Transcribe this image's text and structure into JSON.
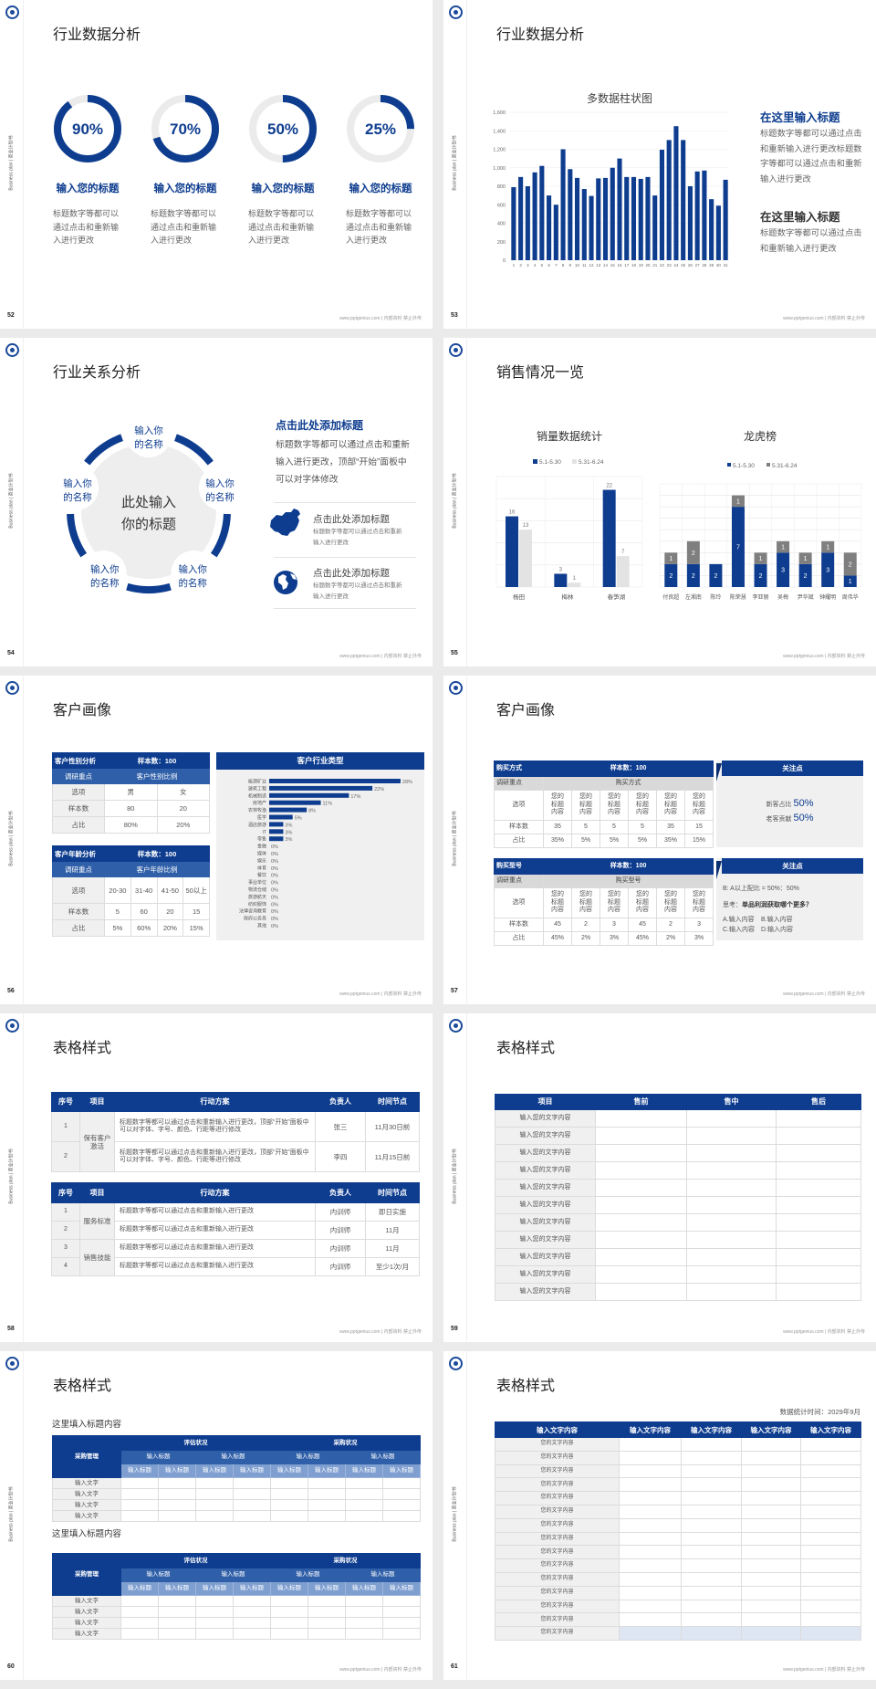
{
  "common": {
    "sidebar_text": "Business plan | 商业计划书",
    "footer": "www.pptgenius.com | 内部资料 禁止外传"
  },
  "colors": {
    "primary": "#0e3d8f",
    "secondary": "#e3e3e3",
    "gray": "#7f7f7f",
    "track": "#ebebeb"
  },
  "slides": [
    {
      "page": "52",
      "title": "行业数据分析",
      "rings": [
        {
          "value": 90,
          "label": "90%",
          "heading": "输入您的标题",
          "body": "标题数字等都可以通过点击和重新输入进行更改"
        },
        {
          "value": 70,
          "label": "70%",
          "heading": "输入您的标题",
          "body": "标题数字等都可以通过点击和重新输入进行更改"
        },
        {
          "value": 50,
          "label": "50%",
          "heading": "输入您的标题",
          "body": "标题数字等都可以通过点击和重新输入进行更改"
        },
        {
          "value": 25,
          "label": "25%",
          "heading": "输入您的标题",
          "body": "标题数字等都可以通过点击和重新输入进行更改"
        }
      ]
    },
    {
      "page": "53",
      "title": "行业数据分析",
      "side": [
        {
          "heading": "在这里输入标题",
          "body": "标题数字等都可以通过点击和重新输入进行更改标题数字等都可以通过点击和重新输入进行更改"
        },
        {
          "heading": "在这里输入标题",
          "body": "标题数字等都可以通过点击和重新输入进行更改"
        }
      ]
    },
    {
      "page": "54",
      "title": "行业关系分析",
      "center": [
        "此处输入",
        "你的标题"
      ],
      "nodes": [
        "输入你的名称",
        "输入你的名称",
        "输入你的名称",
        "输入你的名称",
        "输入你的名称"
      ],
      "heading": "点击此处添加标题",
      "body": "标题数字等都可以通过点击和重新输入进行更改，顶部“开始”面板中可以对字体修改",
      "items": [
        {
          "icon": "china-map-icon",
          "title": "点击此处添加标题",
          "desc": "标题数字等都可以通过点击和重新输入进行更改"
        },
        {
          "icon": "globe-icon",
          "title": "点击此处添加标题",
          "desc": "标题数字等都可以通过点击和重新输入进行更改"
        }
      ]
    },
    {
      "page": "55",
      "title": "销售情况一览"
    },
    {
      "page": "56",
      "title": "客户画像",
      "gender": {
        "header": [
          "客户性别分析",
          "样本数：100"
        ],
        "sub": [
          "调研重点",
          "客户性别比例"
        ],
        "rows": [
          [
            "选项",
            "男",
            "女"
          ],
          [
            "样本数",
            "80",
            "20"
          ],
          [
            "占比",
            "80%",
            "20%"
          ]
        ]
      },
      "age": {
        "header": [
          "客户年龄分析",
          "样本数：100"
        ],
        "sub": [
          "调研重点",
          "客户年龄比例"
        ],
        "rows": [
          [
            "选项",
            "20-30",
            "31-40",
            "41-50",
            "50以上"
          ],
          [
            "样本数",
            "5",
            "60",
            "20",
            "15"
          ],
          [
            "占比",
            "5%",
            "60%",
            "20%",
            "15%"
          ]
        ]
      }
    },
    {
      "page": "57",
      "title": "客户画像",
      "t1": {
        "header": [
          "购买方式",
          "样本数：100"
        ],
        "sub": [
          "调研重点",
          "购买方式"
        ],
        "rows": [
          [
            "选项",
            "您的标题内容",
            "您的标题内容",
            "您的标题内容",
            "您的标题内容",
            "您的标题内容",
            "您的标题内容"
          ],
          [
            "样本数",
            "35",
            "5",
            "5",
            "5",
            "35",
            "15"
          ],
          [
            "占比",
            "35%",
            "5%",
            "5%",
            "5%",
            "35%",
            "15%"
          ]
        ]
      },
      "t2": {
        "header": [
          "购买型号",
          "样本数：100"
        ],
        "sub": [
          "调研重点",
          "购买型号"
        ],
        "rows": [
          [
            "选项",
            "您的标题内容",
            "您的标题内容",
            "您的标题内容",
            "您的标题内容",
            "您的标题内容",
            "您的标题内容"
          ],
          [
            "样本数",
            "45",
            "2",
            "3",
            "45",
            "2",
            "3"
          ],
          [
            "占比",
            "45%",
            "2%",
            "3%",
            "45%",
            "2%",
            "3%"
          ]
        ]
      },
      "box1": {
        "header": "关注点",
        "lines": [
          {
            "label": "新客占比",
            "value": "50%"
          },
          {
            "label": "老客贡献",
            "value": "50%"
          }
        ]
      },
      "box2": {
        "header": "关注点",
        "ratio": "B: A以上配比 = 50%：50%",
        "think_label": "思考：",
        "think": "单品利润获取哪个更多？",
        "options": [
          "A.输入内容",
          "B.输入内容",
          "C.输入内容",
          "D.输入内容"
        ]
      }
    },
    {
      "page": "58",
      "title": "表格样式",
      "headers": [
        "序号",
        "项目",
        "行动方案",
        "负责人",
        "时间节点"
      ],
      "t1": [
        {
          "no": "1",
          "project": "保有客户激活",
          "plan": "标题数字等都可以通过点击和重新输入进行更改，顶部“开始”面板中可以对字体、字号、颜色、行距等进行修改",
          "owner": "张三",
          "time": "11月30日前"
        },
        {
          "no": "2",
          "project": "",
          "plan": "标题数字等都可以通过点击和重新输入进行更改，顶部“开始”面板中可以对字体、字号、颜色、行距等进行修改",
          "owner": "李四",
          "time": "11月15日前"
        }
      ],
      "t2": [
        {
          "no": "1",
          "project": "服务标准",
          "plan": "标题数字等都可以通过点击和重新输入进行更改",
          "owner": "内训师",
          "time": "即日实施"
        },
        {
          "no": "2",
          "project": "",
          "plan": "标题数字等都可以通过点击和重新输入进行更改",
          "owner": "内训师",
          "time": "11月"
        },
        {
          "no": "3",
          "project": "销售技能",
          "plan": "标题数字等都可以通过点击和重新输入进行更改",
          "owner": "内训师",
          "time": "11月"
        },
        {
          "no": "4",
          "project": "",
          "plan": "标题数字等都可以通过点击和重新输入进行更改",
          "owner": "内训师",
          "time": "至少1次/月"
        }
      ]
    },
    {
      "page": "59",
      "title": "表格样式",
      "headers": [
        "项目",
        "售前",
        "售中",
        "售后"
      ],
      "rows": [
        "输入您的文字内容",
        "输入您的文字内容",
        "输入您的文字内容",
        "输入您的文字内容",
        "输入您的文字内容",
        "输入您的文字内容",
        "输入您的文字内容",
        "输入您的文字内容",
        "输入您的文字内容",
        "输入您的文字内容",
        "输入您的文字内容"
      ]
    },
    {
      "page": "60",
      "title": "表格样式",
      "blocks": [
        {
          "subtitle": "这里填入标题内容",
          "corner": "采购管理",
          "groups": [
            "评估状况",
            "采购状况"
          ],
          "subgroups": [
            "输入标题",
            "输入标题",
            "输入标题",
            "输入标题"
          ],
          "cols": [
            "输入标题",
            "输入标题",
            "输入标题",
            "输入标题",
            "输入标题",
            "输入标题",
            "输入标题",
            "输入标题"
          ],
          "rows": [
            "输入文字",
            "输入文字",
            "输入文字",
            "输入文字"
          ]
        },
        {
          "subtitle": "这里填入标题内容",
          "corner": "采购管理",
          "groups": [
            "评估状况",
            "采购状况"
          ],
          "subgroups": [
            "输入标题",
            "输入标题",
            "输入标题",
            "输入标题"
          ],
          "cols": [
            "输入标题",
            "输入标题",
            "输入标题",
            "输入标题",
            "输入标题",
            "输入标题",
            "输入标题",
            "输入标题"
          ],
          "rows": [
            "输入文字",
            "输入文字",
            "输入文字",
            "输入文字"
          ]
        }
      ]
    },
    {
      "page": "61",
      "title": "表格样式",
      "stat_time": "数据统计时间：2029年9月",
      "headers": [
        "输入文字内容",
        "输入文字内容",
        "输入文字内容",
        "输入文字内容",
        "输入文字内容"
      ],
      "rows": [
        "您的文字内容",
        "您的文字内容",
        "您的文字内容",
        "您的文字内容",
        "您的文字内容",
        "您的文字内容",
        "您的文字内容",
        "您的文字内容",
        "您的文字内容",
        "您的文字内容",
        "您的文字内容",
        "您的文字内容",
        "您的文字内容",
        "您的文字内容",
        "您的文字内容"
      ]
    }
  ],
  "chart_data": [
    {
      "type": "bar",
      "title": "多数据柱状图",
      "categories": [
        "1",
        "2",
        "3",
        "4",
        "5",
        "6",
        "7",
        "8",
        "9",
        "10",
        "11",
        "12",
        "13",
        "14",
        "15",
        "16",
        "17",
        "18",
        "19",
        "20",
        "21",
        "22",
        "23",
        "24",
        "25",
        "26",
        "27",
        "28",
        "29",
        "30",
        "31"
      ],
      "values": [
        790,
        900,
        800,
        950,
        1020,
        700,
        600,
        1200,
        985,
        890,
        770,
        695,
        885,
        890,
        1000,
        1100,
        900,
        900,
        880,
        900,
        700,
        1195,
        1300,
        1450,
        1300,
        800,
        960,
        970,
        660,
        590,
        870
      ],
      "ylim": [
        0,
        1600
      ],
      "yticks": [
        "0",
        "200",
        "400",
        "600",
        "800",
        "1,000",
        "1,200",
        "1,400",
        "1,600"
      ],
      "grid": true
    },
    {
      "type": "bar",
      "title": "销量数据统计",
      "categories": [
        "杨田",
        "梅林",
        "春笋湖"
      ],
      "series": [
        {
          "name": "5.1-5.30",
          "values": [
            16,
            3,
            22
          ]
        },
        {
          "name": "5.31-6.24",
          "values": [
            13,
            1,
            7
          ]
        }
      ],
      "ylim": [
        0,
        25
      ],
      "legend": "top",
      "data_labels": true,
      "grid": true
    },
    {
      "type": "bar",
      "stacked": true,
      "title": "龙虎榜",
      "categories": [
        "付良超",
        "左湘南",
        "陈玲",
        "陈荣慧",
        "李亚丽",
        "吴梅",
        "尹华斌",
        "钟耀明",
        "周伟华"
      ],
      "series": [
        {
          "name": "5.1-5.30",
          "values": [
            2,
            2,
            2,
            7,
            2,
            3,
            2,
            3,
            1
          ]
        },
        {
          "name": "5.31-6.24",
          "values": [
            1,
            2,
            0,
            1,
            1,
            1,
            1,
            1,
            2
          ]
        }
      ],
      "ylim": [
        0,
        9
      ],
      "legend": "top",
      "data_labels": true,
      "grid": true
    },
    {
      "type": "bar",
      "orientation": "horizontal",
      "title": "客户行业类型",
      "categories": [
        "能源矿业",
        "建筑工程",
        "机械制造",
        "房地产",
        "农林牧渔",
        "医学",
        "酒店旅游",
        "IT",
        "零售",
        "金融",
        "媒体",
        "娱乐",
        "体育",
        "餐饮",
        "事业单位",
        "物流仓储",
        "旅游航天",
        "纺织服饰",
        "法律咨询教育",
        "政府公务员",
        "其他"
      ],
      "values": [
        28,
        22,
        17,
        11,
        8,
        5,
        3,
        3,
        3,
        0,
        0,
        0,
        0,
        0,
        0,
        0,
        0,
        0,
        0,
        0,
        0
      ],
      "labels": [
        "28%",
        "22%",
        "17%",
        "11%",
        "8%",
        "5%",
        "3%",
        "3%",
        "3%",
        "0%",
        "0%",
        "0%",
        "0%",
        "0%",
        "0%",
        "0%",
        "0%",
        "0%",
        "0%",
        "0%",
        "0%"
      ]
    }
  ]
}
